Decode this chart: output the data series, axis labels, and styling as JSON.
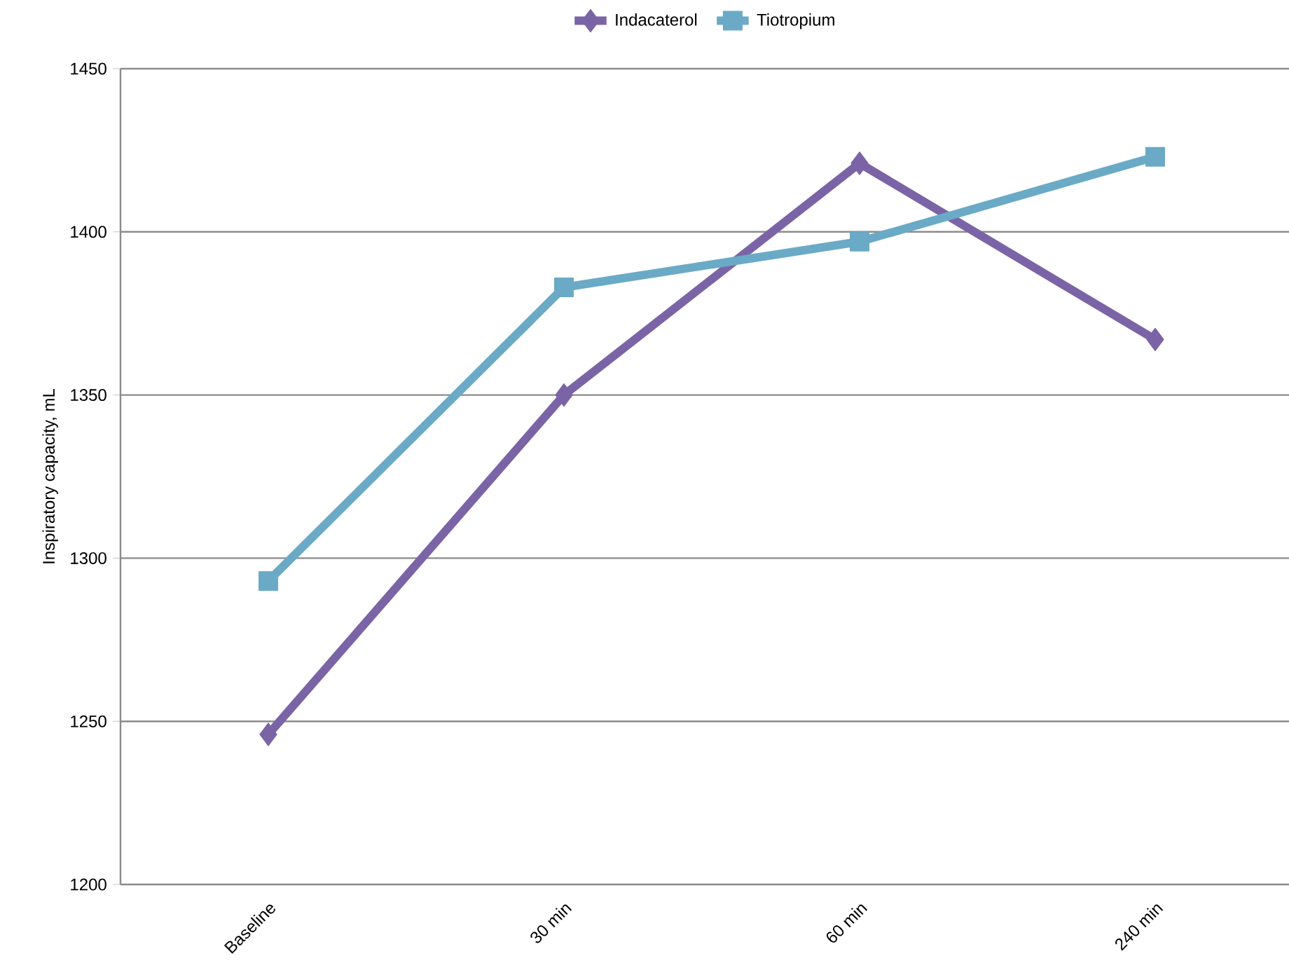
{
  "chart_data": {
    "type": "line",
    "ylabel": "Inspiratory capacity, mL",
    "categories": [
      "Baseline",
      "30 min",
      "60 min",
      "240 min"
    ],
    "series": [
      {
        "name": "Indacaterol",
        "color": "#7b64a6",
        "marker": "diamond",
        "values": [
          1246,
          1350,
          1421,
          1367
        ]
      },
      {
        "name": "Tiotropium",
        "color": "#6aaac6",
        "marker": "square",
        "values": [
          1293,
          1383,
          1397,
          1423
        ]
      }
    ],
    "ylim": [
      1200,
      1450
    ],
    "yticks": [
      1200,
      1250,
      1300,
      1350,
      1400,
      1450
    ],
    "grid": "y",
    "legend": "top",
    "line_style": "solid"
  }
}
